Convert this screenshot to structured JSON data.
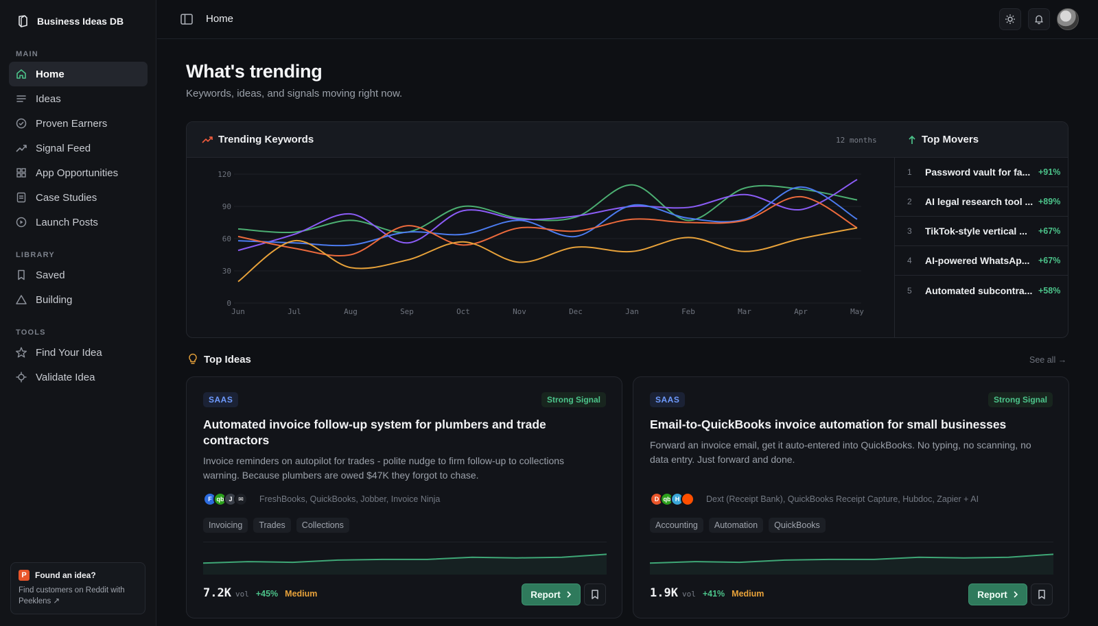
{
  "app": {
    "name": "Business Ideas DB"
  },
  "sidebar": {
    "sections": {
      "main": "MAIN",
      "library": "LIBRARY",
      "tools": "TOOLS"
    },
    "main_items": [
      {
        "label": "Home",
        "icon": "home-icon"
      },
      {
        "label": "Ideas",
        "icon": "list-icon"
      },
      {
        "label": "Proven Earners",
        "icon": "check-circle-icon"
      },
      {
        "label": "Signal Feed",
        "icon": "trend-up-icon"
      },
      {
        "label": "App Opportunities",
        "icon": "grid-icon"
      },
      {
        "label": "Case Studies",
        "icon": "document-icon"
      },
      {
        "label": "Launch Posts",
        "icon": "play-circle-icon"
      }
    ],
    "library_items": [
      {
        "label": "Saved",
        "icon": "bookmark-icon"
      },
      {
        "label": "Building",
        "icon": "triangle-icon"
      }
    ],
    "tools_items": [
      {
        "label": "Find Your Idea",
        "icon": "star-icon"
      },
      {
        "label": "Validate Idea",
        "icon": "crosshair-icon"
      }
    ],
    "promo": {
      "title": "Found an idea?",
      "text": "Find customers on Reddit with Peeklens ↗"
    }
  },
  "topbar": {
    "breadcrumb": "Home"
  },
  "main": {
    "title": "What's trending",
    "subtitle": "Keywords, ideas, and signals moving right now."
  },
  "trending": {
    "title": "Trending Keywords",
    "range": "12 months",
    "movers_title": "Top Movers",
    "movers": [
      {
        "rank": "1",
        "name": "Password vault for fa...",
        "pct": "+91%"
      },
      {
        "rank": "2",
        "name": "AI legal research tool ...",
        "pct": "+89%"
      },
      {
        "rank": "3",
        "name": "TikTok-style vertical ...",
        "pct": "+67%"
      },
      {
        "rank": "4",
        "name": "AI-powered WhatsAp...",
        "pct": "+67%"
      },
      {
        "rank": "5",
        "name": "Automated subcontra...",
        "pct": "+58%"
      }
    ]
  },
  "chart_data": {
    "type": "line",
    "title": "Trending Keywords",
    "categories": [
      "Jun",
      "Jul",
      "Aug",
      "Sep",
      "Oct",
      "Nov",
      "Dec",
      "Jan",
      "Feb",
      "Mar",
      "Apr",
      "May"
    ],
    "ylim": [
      0,
      120
    ],
    "yticks": [
      0,
      30,
      60,
      90,
      120
    ],
    "grid": true,
    "series": [
      {
        "color": "#4caf72",
        "values": [
          69,
          66,
          77,
          66,
          90,
          79,
          80,
          110,
          77,
          107,
          106,
          96
        ]
      },
      {
        "color": "#8b5cf6",
        "values": [
          49,
          64,
          83,
          56,
          86,
          78,
          81,
          90,
          89,
          101,
          87,
          115
        ]
      },
      {
        "color": "#4c7cf0",
        "values": [
          58,
          56,
          54,
          66,
          64,
          77,
          62,
          91,
          79,
          78,
          108,
          78
        ]
      },
      {
        "color": "#ec6a3c",
        "values": [
          62,
          51,
          45,
          72,
          54,
          70,
          67,
          78,
          75,
          77,
          99,
          70
        ]
      },
      {
        "color": "#e8a23a",
        "values": [
          20,
          58,
          33,
          40,
          57,
          38,
          52,
          48,
          61,
          48,
          60,
          70
        ]
      }
    ]
  },
  "ideas": {
    "title": "Top Ideas",
    "see_all": "See all →",
    "cards": [
      {
        "type": "SAAS",
        "signal": "Strong Signal",
        "title": "Automated invoice follow-up system for plumbers and trade contractors",
        "desc": "Invoice reminders on autopilot for trades - polite nudge to firm follow-up to collections warning. Because plumbers are owed $47K they forgot to chase.",
        "competitors": "FreshBooks, QuickBooks, Jobber, Invoice Ninja",
        "chips": [
          "Invoicing",
          "Trades",
          "Collections"
        ],
        "volume": "7.2K",
        "vol_unit": "vol",
        "growth": "+45%",
        "level": "Medium",
        "report": "Report",
        "spark": [
          12,
          14,
          13,
          16,
          17,
          17,
          20,
          19,
          20,
          24
        ]
      },
      {
        "type": "SAAS",
        "signal": "Strong Signal",
        "title": "Email-to-QuickBooks invoice automation for small businesses",
        "desc": "Forward an invoice email, get it auto-entered into QuickBooks. No typing, no scanning, no data entry. Just forward and done.",
        "competitors": "Dext (Receipt Bank), QuickBooks Receipt Capture, Hubdoc, Zapier + AI",
        "chips": [
          "Accounting",
          "Automation",
          "QuickBooks"
        ],
        "volume": "1.9K",
        "vol_unit": "vol",
        "growth": "+41%",
        "level": "Medium",
        "report": "Report",
        "spark": [
          12,
          14,
          13,
          16,
          17,
          17,
          20,
          19,
          20,
          24
        ]
      }
    ]
  }
}
